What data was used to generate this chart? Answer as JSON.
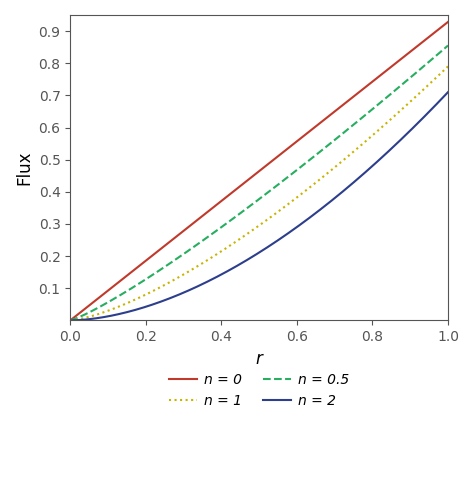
{
  "n_values": [
    0,
    0.5,
    1,
    2
  ],
  "n_labels": [
    "n = 0",
    "n = 0.5",
    "n = 1",
    "n = 2"
  ],
  "colors": [
    "#c0392b",
    "#27ae60",
    "#c8b400",
    "#2c3e8c"
  ],
  "linestyles": [
    "-",
    "--",
    ":",
    "-"
  ],
  "linewidths": [
    1.5,
    1.5,
    1.5,
    1.5
  ],
  "xlabel": "r",
  "ylabel": "Flux",
  "xlim": [
    0,
    1
  ],
  "ylim": [
    0,
    0.95
  ],
  "yticks": [
    0.1,
    0.2,
    0.3,
    0.4,
    0.5,
    0.6,
    0.7,
    0.8,
    0.9
  ],
  "xticks": [
    0,
    0.2,
    0.4,
    0.6,
    0.8,
    1
  ],
  "background_color": "#ffffff",
  "num_points": 500,
  "scale_factors": [
    0.9285,
    0.855,
    0.79,
    0.71
  ],
  "exponents": [
    1.0,
    1.18,
    1.42,
    1.75
  ]
}
